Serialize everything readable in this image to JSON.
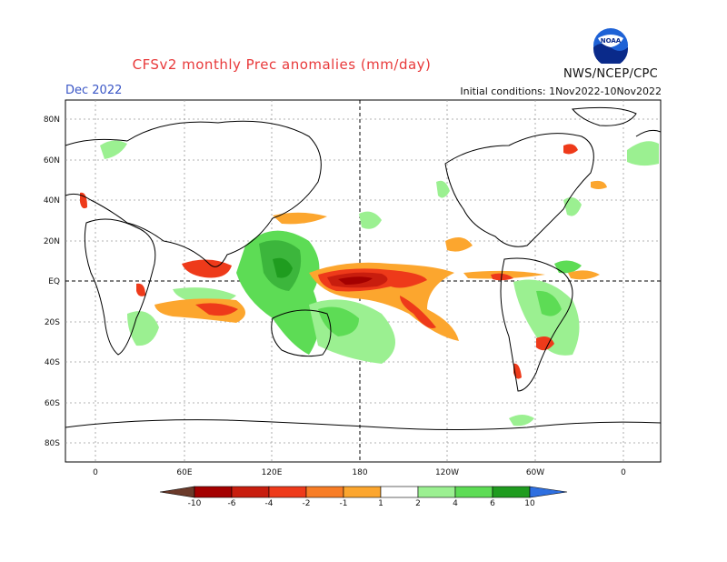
{
  "header": {
    "title": "CFSv2 monthly Prec anomalies (mm/day)",
    "month": "Dec 2022",
    "initial_conditions": "Initial conditions: 1Nov2022-10Nov2022",
    "agency": "NWS/NCEP/CPC",
    "logo_text": "NOAA"
  },
  "axes": {
    "lat_labels": [
      "80N",
      "60N",
      "40N",
      "20N",
      "EQ",
      "20S",
      "40S",
      "60S",
      "80S"
    ],
    "lon_labels": [
      "0",
      "60E",
      "120E",
      "180",
      "120W",
      "60W",
      "0"
    ]
  },
  "colorbar": {
    "labels": [
      "-10",
      "-6",
      "-4",
      "-2",
      "-1",
      "1",
      "2",
      "4",
      "6",
      "10"
    ],
    "colors": [
      "#6b3a2a",
      "#a40000",
      "#c81d0e",
      "#ee3a1a",
      "#f87d26",
      "#fca62e",
      "#ffffff",
      "#9bf091",
      "#5ddc55",
      "#3cb63c",
      "#1f9c1f",
      "#1e8c3a",
      "#2e6fe0"
    ]
  },
  "anomaly_colors": {
    "dry_strong": "#a40000",
    "dry": "#ee3a1a",
    "dry_weak": "#fca62e",
    "wet_weak": "#9bf091",
    "wet": "#3cb63c"
  }
}
